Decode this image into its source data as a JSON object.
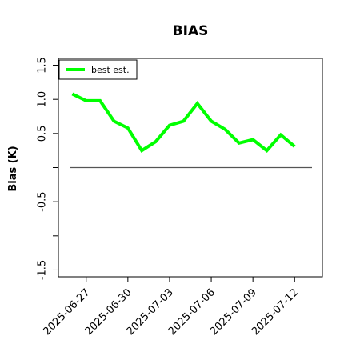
{
  "chart_data": {
    "type": "line",
    "title": "BIAS",
    "xlabel": "",
    "ylabel": "Bias (K)",
    "ylim": [
      -1.6,
      1.6
    ],
    "yticks": [
      {
        "value": -1.5,
        "label": "-1.5"
      },
      {
        "value": -1.0,
        "label": ""
      },
      {
        "value": -0.5,
        "label": "-0.5"
      },
      {
        "value": 0.0,
        "label": ""
      },
      {
        "value": 0.5,
        "label": "0.5"
      },
      {
        "value": 1.0,
        "label": "1.0"
      },
      {
        "value": 1.5,
        "label": "1.5"
      }
    ],
    "xticks": [
      "2025-06-27",
      "2025-06-30",
      "2025-07-03",
      "2025-07-06",
      "2025-07-09",
      "2025-07-12"
    ],
    "xlim": [
      "2025-06-25",
      "2025-07-14"
    ],
    "reference_line": 0,
    "grid": false,
    "legend_position": "top-left",
    "series": [
      {
        "name": "best est.",
        "color": "#00ff00",
        "x": [
          "2025-06-26",
          "2025-06-27",
          "2025-06-28",
          "2025-06-29",
          "2025-06-30",
          "2025-07-01",
          "2025-07-02",
          "2025-07-03",
          "2025-07-04",
          "2025-07-05",
          "2025-07-06",
          "2025-07-07",
          "2025-07-08",
          "2025-07-09",
          "2025-07-10",
          "2025-07-11",
          "2025-07-12"
        ],
        "values": [
          1.08,
          0.98,
          0.98,
          0.68,
          0.58,
          0.25,
          0.38,
          0.62,
          0.68,
          0.94,
          0.68,
          0.56,
          0.36,
          0.41,
          0.25,
          0.48,
          0.31
        ]
      }
    ]
  }
}
